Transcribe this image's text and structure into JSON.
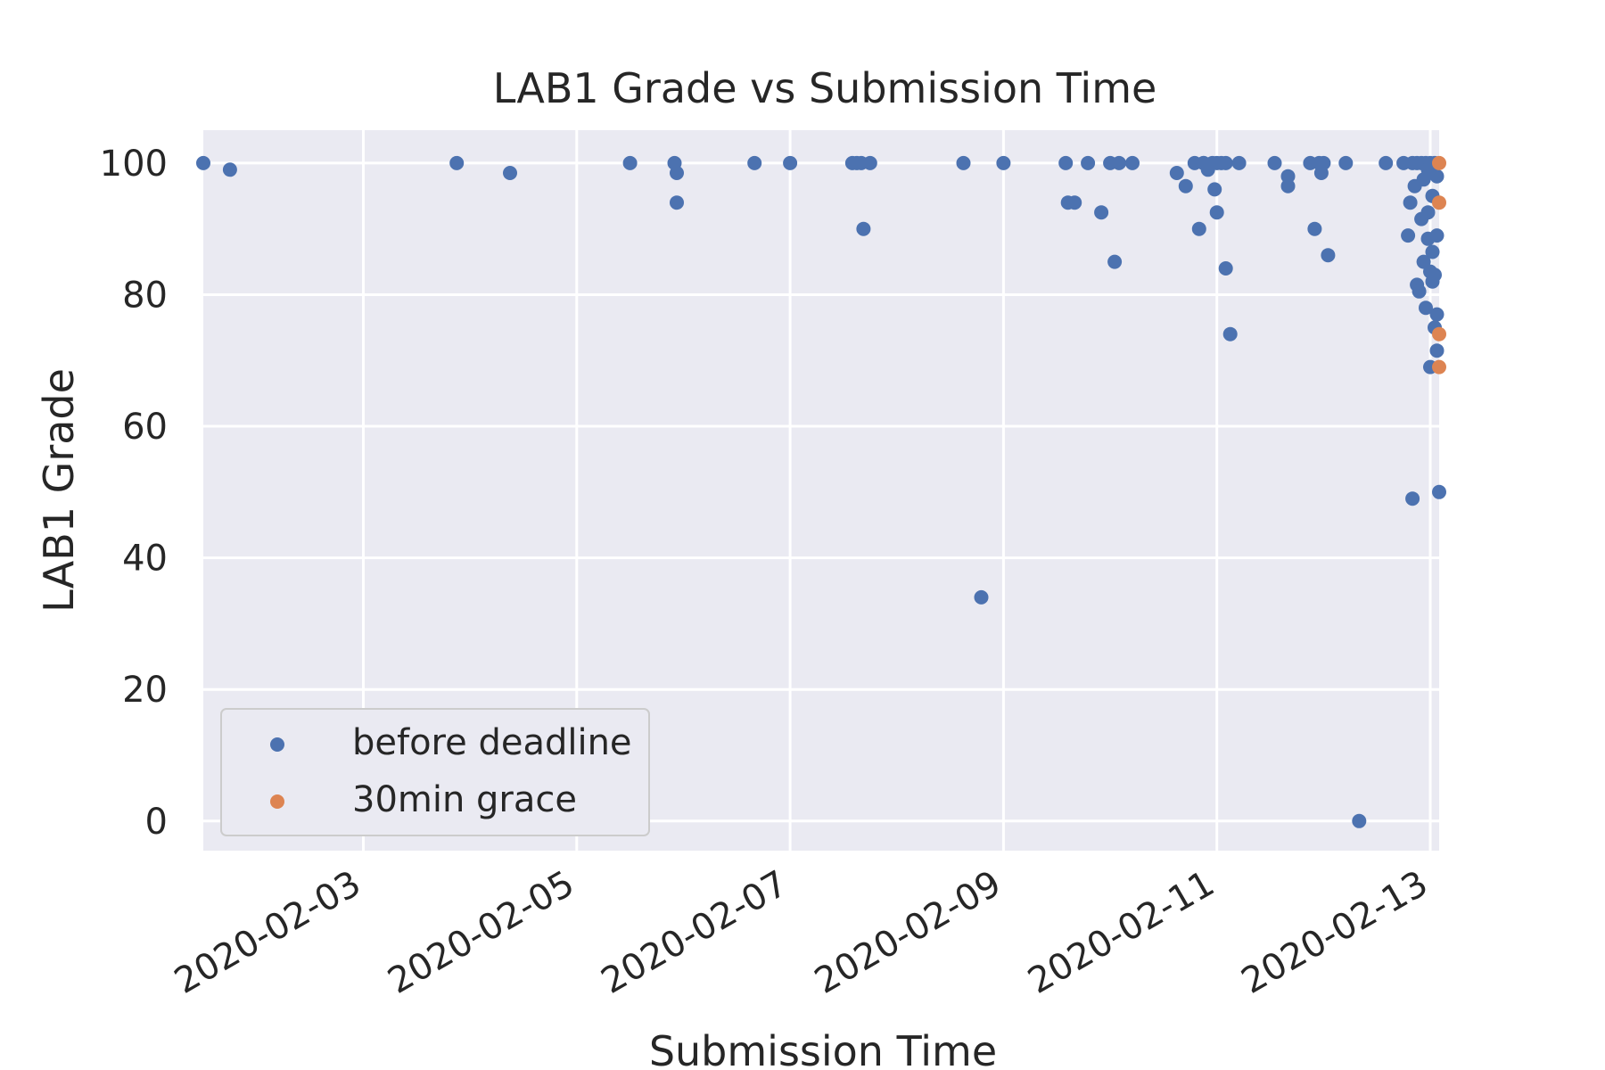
{
  "chart_data": {
    "type": "scatter",
    "title": "LAB1 Grade vs Submission Time",
    "xlabel": "Submission Time",
    "ylabel": "LAB1 Grade",
    "x_axis_type": "date",
    "xlim": [
      "2020-02-01T12:00",
      "2020-02-13T02:00"
    ],
    "ylim": [
      -4.5,
      105
    ],
    "x_ticks": [
      "2020-02-03",
      "2020-02-05",
      "2020-02-07",
      "2020-02-09",
      "2020-02-11",
      "2020-02-13"
    ],
    "y_ticks": [
      0,
      20,
      40,
      60,
      80,
      100
    ],
    "grid": true,
    "legend_position": "lower-left",
    "colors": {
      "background": "#eaeaf2",
      "grid": "#ffffff",
      "before": "#4c72b0",
      "grace": "#dd8452"
    },
    "series": [
      {
        "name": "before deadline",
        "points": [
          [
            "2020-02-01T12:00",
            100
          ],
          [
            "2020-02-01T18:00",
            99
          ],
          [
            "2020-02-03T21:00",
            100
          ],
          [
            "2020-02-04T09:00",
            98.5
          ],
          [
            "2020-02-05T12:00",
            100
          ],
          [
            "2020-02-05T22:00",
            100
          ],
          [
            "2020-02-05T22:30",
            98.5
          ],
          [
            "2020-02-05T22:30",
            94
          ],
          [
            "2020-02-06T16:00",
            100
          ],
          [
            "2020-02-07T00:00",
            100
          ],
          [
            "2020-02-07T14:00",
            100
          ],
          [
            "2020-02-07T15:00",
            100
          ],
          [
            "2020-02-07T16:00",
            100
          ],
          [
            "2020-02-07T16:30",
            90
          ],
          [
            "2020-02-07T18:00",
            100
          ],
          [
            "2020-02-08T15:00",
            100
          ],
          [
            "2020-02-08T19:00",
            34
          ],
          [
            "2020-02-09T00:00",
            100
          ],
          [
            "2020-02-09T14:00",
            100
          ],
          [
            "2020-02-09T14:30",
            94
          ],
          [
            "2020-02-09T16:00",
            94
          ],
          [
            "2020-02-09T19:00",
            100
          ],
          [
            "2020-02-09T22:00",
            92.5
          ],
          [
            "2020-02-10T00:00",
            100
          ],
          [
            "2020-02-10T01:00",
            85
          ],
          [
            "2020-02-10T02:00",
            100
          ],
          [
            "2020-02-10T05:00",
            100
          ],
          [
            "2020-02-10T15:00",
            98.5
          ],
          [
            "2020-02-10T17:00",
            96.5
          ],
          [
            "2020-02-10T19:00",
            100
          ],
          [
            "2020-02-10T21:00",
            100
          ],
          [
            "2020-02-11T00:00",
            100
          ],
          [
            "2020-02-10T20:00",
            90
          ],
          [
            "2020-02-10T21:00",
            100
          ],
          [
            "2020-02-10T22:00",
            99
          ],
          [
            "2020-02-10T23:00",
            100
          ],
          [
            "2020-02-10T23:30",
            96
          ],
          [
            "2020-02-11T00:00",
            92.5
          ],
          [
            "2020-02-11T01:00",
            100
          ],
          [
            "2020-02-11T02:00",
            84
          ],
          [
            "2020-02-11T02:00",
            100
          ],
          [
            "2020-02-11T03:00",
            74
          ],
          [
            "2020-02-11T05:00",
            100
          ],
          [
            "2020-02-11T13:00",
            100
          ],
          [
            "2020-02-11T16:00",
            98
          ],
          [
            "2020-02-11T16:00",
            96.5
          ],
          [
            "2020-02-11T21:00",
            100
          ],
          [
            "2020-02-11T22:00",
            90
          ],
          [
            "2020-02-11T23:00",
            100
          ],
          [
            "2020-02-11T23:30",
            98.5
          ],
          [
            "2020-02-12T00:00",
            100
          ],
          [
            "2020-02-12T01:00",
            86
          ],
          [
            "2020-02-12T05:00",
            100
          ],
          [
            "2020-02-12T08:00",
            0
          ],
          [
            "2020-02-12T14:00",
            100
          ],
          [
            "2020-02-12T18:00",
            100
          ],
          [
            "2020-02-12T19:00",
            89
          ],
          [
            "2020-02-12T19:30",
            94
          ],
          [
            "2020-02-12T20:00",
            49
          ],
          [
            "2020-02-12T20:30",
            96.5
          ],
          [
            "2020-02-12T21:00",
            81.5
          ],
          [
            "2020-02-12T21:30",
            80.5
          ],
          [
            "2020-02-12T22:00",
            91.5
          ],
          [
            "2020-02-12T22:30",
            85
          ],
          [
            "2020-02-12T23:00",
            78
          ],
          [
            "2020-02-12T23:30",
            92.5
          ],
          [
            "2020-02-12T23:30",
            88.5
          ],
          [
            "2020-02-13T00:00",
            83.5
          ],
          [
            "2020-02-13T00:00",
            69
          ],
          [
            "2020-02-13T00:30",
            95
          ],
          [
            "2020-02-13T00:30",
            86.5
          ],
          [
            "2020-02-13T00:30",
            82
          ],
          [
            "2020-02-13T01:00",
            75
          ],
          [
            "2020-02-13T01:00",
            83
          ],
          [
            "2020-02-13T01:30",
            71.5
          ],
          [
            "2020-02-13T01:30",
            77
          ],
          [
            "2020-02-13T01:30",
            89
          ],
          [
            "2020-02-13T02:00",
            50
          ],
          [
            "2020-02-12T20:00",
            100
          ],
          [
            "2020-02-12T21:00",
            100
          ],
          [
            "2020-02-12T22:00",
            100
          ],
          [
            "2020-02-12T23:00",
            100
          ],
          [
            "2020-02-13T00:00",
            100
          ],
          [
            "2020-02-13T01:00",
            100
          ],
          [
            "2020-02-13T01:30",
            98
          ],
          [
            "2020-02-12T22:30",
            97.5
          ],
          [
            "2020-02-12T23:30",
            99
          ]
        ]
      },
      {
        "name": "30min grace",
        "points": [
          [
            "2020-02-13T02:00",
            100
          ],
          [
            "2020-02-13T02:00",
            94
          ],
          [
            "2020-02-13T02:00",
            74
          ],
          [
            "2020-02-13T02:00",
            69
          ]
        ]
      }
    ]
  }
}
